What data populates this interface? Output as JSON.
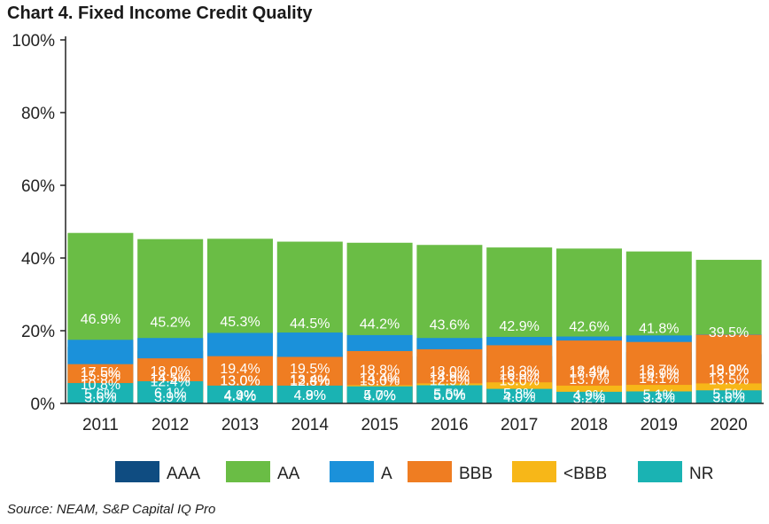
{
  "chart_data": {
    "type": "bar",
    "stacked": true,
    "title": "Chart 4. Fixed Income Credit Quality",
    "source": "Source: NEAM, S&P Capital IQ Pro",
    "categories": [
      "2011",
      "2012",
      "2013",
      "2014",
      "2015",
      "2016",
      "2017",
      "2018",
      "2019",
      "2020"
    ],
    "ylim": [
      0,
      100
    ],
    "yticks": [
      0,
      20,
      40,
      60,
      80,
      100
    ],
    "ytick_labels": [
      "0%",
      "20%",
      "40%",
      "60%",
      "80%",
      "100%"
    ],
    "grid": false,
    "legend_position": "bottom",
    "series": [
      {
        "name": "AAA",
        "color": "#0f4c81",
        "values": [
          15.5,
          14.5,
          13.0,
          13.4,
          13.0,
          12.9,
          13.0,
          13.7,
          14.1,
          13.5
        ],
        "labels": [
          "15.5%",
          "14.5%",
          "13.0%",
          "13.4%",
          "13.0%",
          "12.9%",
          "13.0%",
          "13.7%",
          "14.1%",
          "13.5%"
        ]
      },
      {
        "name": "AA",
        "color": "#6abd45",
        "values": [
          46.9,
          45.2,
          45.3,
          44.5,
          44.2,
          43.6,
          42.9,
          42.6,
          41.8,
          39.5
        ],
        "labels": [
          "46.9%",
          "45.2%",
          "45.3%",
          "44.5%",
          "44.2%",
          "43.6%",
          "42.9%",
          "42.6%",
          "41.8%",
          "39.5%"
        ]
      },
      {
        "name": "A",
        "color": "#1b91da",
        "values": [
          17.5,
          18.0,
          19.4,
          19.5,
          18.8,
          18.0,
          18.3,
          18.4,
          18.7,
          19.0
        ],
        "labels": [
          "17.5%",
          "18.0%",
          "19.4%",
          "19.5%",
          "18.8%",
          "18.0%",
          "18.3%",
          "18.4%",
          "18.7%",
          "19.0%"
        ]
      },
      {
        "name": "BBB",
        "color": "#ef7d22",
        "values": [
          10.8,
          12.4,
          13.0,
          12.8,
          14.4,
          14.9,
          16.0,
          17.3,
          16.9,
          18.9
        ],
        "labels": [
          "10.8%",
          "12.4%",
          "13.0%",
          "12.8%",
          "14.4%",
          "14.9%",
          "16.0%",
          "17.3%",
          "16.9%",
          "18.9%"
        ]
      },
      {
        "name": "<BBB",
        "color": "#f7b718",
        "values": [
          3.6,
          3.9,
          4.4,
          4.8,
          5.0,
          5.5,
          5.8,
          4.9,
          5.1,
          5.5
        ],
        "labels": [
          "3.6%",
          "3.9%",
          "4.4%",
          "4.8%",
          "5.0%",
          "5.5%",
          "5.8%",
          "4.9%",
          "5.1%",
          "5.5%"
        ]
      },
      {
        "name": "NR",
        "color": "#1ab3b3",
        "values": [
          5.6,
          6.1,
          4.9,
          4.9,
          4.7,
          5.0,
          4.0,
          3.2,
          3.3,
          3.6
        ],
        "labels": [
          "5.6%",
          "6.1%",
          "4.9%",
          "4.9%",
          "4.7%",
          "5.0%",
          "4.0%",
          "3.2%",
          "3.3%",
          "3.6%"
        ]
      }
    ]
  }
}
